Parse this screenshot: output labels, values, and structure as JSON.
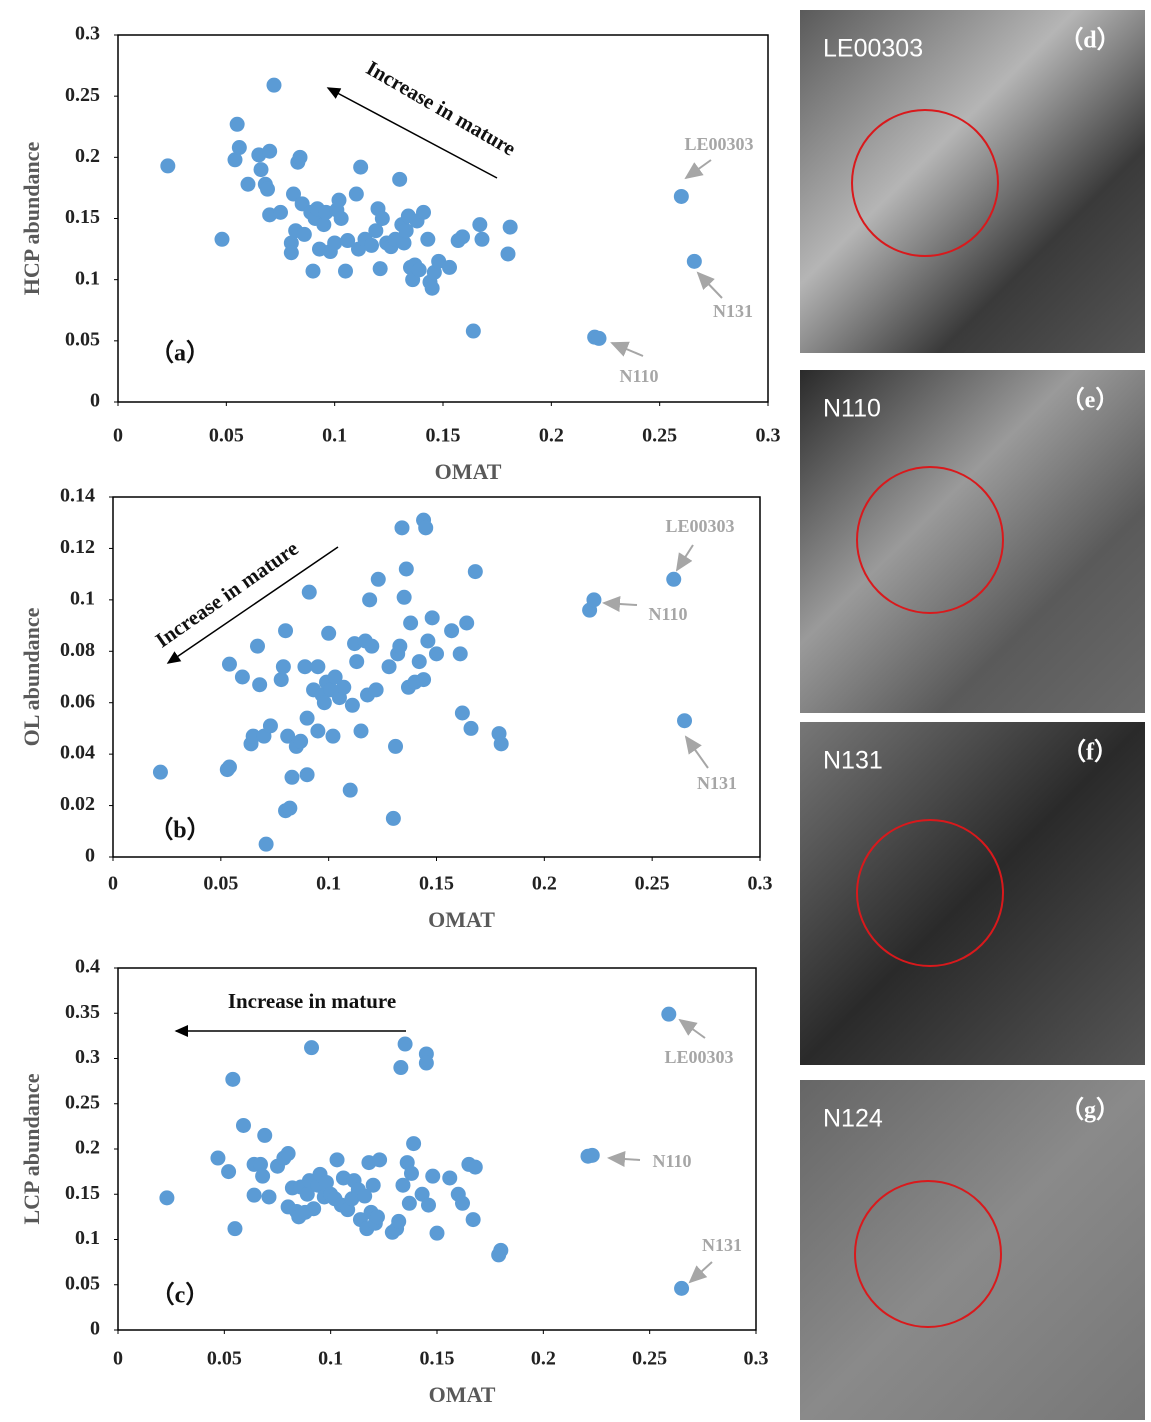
{
  "chart_data": [
    {
      "type": "scatter",
      "panel_label": "（a）",
      "x_label": "OMAT",
      "y_label": "HCP abundance",
      "color": "#5b9bd5",
      "xlim": [
        0,
        0.3
      ],
      "xticks": [
        0,
        0.05,
        0.1,
        0.15,
        0.2,
        0.25,
        0.3
      ],
      "ylim": [
        0,
        0.3
      ],
      "yticks": [
        0,
        0.05,
        0.1,
        0.15,
        0.2,
        0.25,
        0.3
      ],
      "annotations": [
        {
          "text": "Increase in mature"
        },
        {
          "text": "LE00303"
        },
        {
          "text": "N131"
        },
        {
          "text": "N110"
        }
      ],
      "x": [
        0.023,
        0.048,
        0.054,
        0.055,
        0.056,
        0.06,
        0.065,
        0.066,
        0.068,
        0.069,
        0.07,
        0.07,
        0.072,
        0.075,
        0.08,
        0.08,
        0.081,
        0.082,
        0.083,
        0.084,
        0.085,
        0.086,
        0.089,
        0.09,
        0.091,
        0.092,
        0.093,
        0.095,
        0.096,
        0.098,
        0.1,
        0.101,
        0.102,
        0.103,
        0.105,
        0.106,
        0.11,
        0.111,
        0.112,
        0.114,
        0.117,
        0.119,
        0.12,
        0.121,
        0.122,
        0.124,
        0.126,
        0.128,
        0.13,
        0.131,
        0.132,
        0.133,
        0.134,
        0.135,
        0.136,
        0.137,
        0.138,
        0.139,
        0.141,
        0.143,
        0.144,
        0.145,
        0.146,
        0.148,
        0.153,
        0.157,
        0.159,
        0.164,
        0.167,
        0.168,
        0.18,
        0.181,
        0.22,
        0.222,
        0.26,
        0.266
      ],
      "values": [
        0.193,
        0.133,
        0.198,
        0.227,
        0.208,
        0.178,
        0.202,
        0.19,
        0.178,
        0.174,
        0.205,
        0.153,
        0.259,
        0.155,
        0.13,
        0.122,
        0.17,
        0.14,
        0.196,
        0.2,
        0.162,
        0.137,
        0.155,
        0.107,
        0.15,
        0.158,
        0.125,
        0.145,
        0.155,
        0.123,
        0.13,
        0.157,
        0.165,
        0.15,
        0.107,
        0.132,
        0.17,
        0.125,
        0.192,
        0.133,
        0.128,
        0.14,
        0.158,
        0.109,
        0.15,
        0.13,
        0.127,
        0.133,
        0.182,
        0.145,
        0.13,
        0.14,
        0.152,
        0.11,
        0.1,
        0.112,
        0.148,
        0.108,
        0.155,
        0.133,
        0.098,
        0.093,
        0.106,
        0.115,
        0.11,
        0.132,
        0.135,
        0.058,
        0.145,
        0.133,
        0.121,
        0.143,
        0.053,
        0.052,
        0.168,
        0.115
      ]
    },
    {
      "type": "scatter",
      "panel_label": "（b）",
      "x_label": "OMAT",
      "y_label": "OL abundance",
      "color": "#5b9bd5",
      "xlim": [
        0,
        0.3
      ],
      "xticks": [
        0,
        0.05,
        0.1,
        0.15,
        0.2,
        0.25,
        0.3
      ],
      "ylim": [
        0,
        0.14
      ],
      "yticks": [
        0,
        0.02,
        0.04,
        0.06,
        0.08,
        0.1,
        0.12,
        0.14
      ],
      "annotations": [
        {
          "text": "Increase in mature"
        },
        {
          "text": "LE00303"
        },
        {
          "text": "N110"
        },
        {
          "text": "N131"
        }
      ],
      "x": [
        0.022,
        0.053,
        0.054,
        0.054,
        0.06,
        0.064,
        0.065,
        0.067,
        0.068,
        0.07,
        0.071,
        0.073,
        0.078,
        0.079,
        0.08,
        0.08,
        0.081,
        0.082,
        0.083,
        0.085,
        0.087,
        0.089,
        0.09,
        0.09,
        0.091,
        0.093,
        0.095,
        0.095,
        0.097,
        0.098,
        0.099,
        0.1,
        0.101,
        0.102,
        0.103,
        0.105,
        0.107,
        0.11,
        0.111,
        0.112,
        0.113,
        0.115,
        0.117,
        0.118,
        0.119,
        0.12,
        0.122,
        0.123,
        0.128,
        0.13,
        0.131,
        0.132,
        0.133,
        0.134,
        0.135,
        0.136,
        0.137,
        0.138,
        0.14,
        0.142,
        0.144,
        0.144,
        0.145,
        0.146,
        0.148,
        0.15,
        0.157,
        0.161,
        0.162,
        0.164,
        0.166,
        0.168,
        0.179,
        0.18,
        0.221,
        0.223,
        0.26,
        0.265
      ],
      "values": [
        0.033,
        0.034,
        0.035,
        0.075,
        0.07,
        0.044,
        0.047,
        0.082,
        0.067,
        0.047,
        0.005,
        0.051,
        0.069,
        0.074,
        0.018,
        0.088,
        0.047,
        0.019,
        0.031,
        0.043,
        0.045,
        0.074,
        0.054,
        0.032,
        0.103,
        0.065,
        0.074,
        0.049,
        0.063,
        0.06,
        0.068,
        0.087,
        0.065,
        0.047,
        0.07,
        0.062,
        0.066,
        0.026,
        0.059,
        0.083,
        0.076,
        0.049,
        0.084,
        0.063,
        0.1,
        0.082,
        0.065,
        0.108,
        0.074,
        0.015,
        0.043,
        0.079,
        0.082,
        0.128,
        0.101,
        0.112,
        0.066,
        0.091,
        0.068,
        0.076,
        0.069,
        0.131,
        0.128,
        0.084,
        0.093,
        0.079,
        0.088,
        0.079,
        0.056,
        0.091,
        0.05,
        0.111,
        0.048,
        0.044,
        0.096,
        0.1,
        0.108,
        0.053
      ]
    },
    {
      "type": "scatter",
      "panel_label": "（c）",
      "x_label": "OMAT",
      "y_label": "LCP abundance",
      "color": "#5b9bd5",
      "xlim": [
        0,
        0.3
      ],
      "xticks": [
        0,
        0.05,
        0.1,
        0.15,
        0.2,
        0.25,
        0.3
      ],
      "ylim": [
        0,
        0.4
      ],
      "yticks": [
        0,
        0.05,
        0.1,
        0.15,
        0.2,
        0.25,
        0.3,
        0.35,
        0.4
      ],
      "annotations": [
        {
          "text": "Increase in mature"
        },
        {
          "text": "LE00303"
        },
        {
          "text": "N110"
        },
        {
          "text": "N131"
        }
      ],
      "x": [
        0.023,
        0.047,
        0.052,
        0.054,
        0.055,
        0.059,
        0.064,
        0.064,
        0.067,
        0.068,
        0.069,
        0.071,
        0.075,
        0.078,
        0.08,
        0.08,
        0.082,
        0.084,
        0.085,
        0.086,
        0.088,
        0.089,
        0.09,
        0.091,
        0.092,
        0.094,
        0.095,
        0.097,
        0.098,
        0.1,
        0.102,
        0.103,
        0.105,
        0.106,
        0.108,
        0.11,
        0.111,
        0.113,
        0.114,
        0.116,
        0.117,
        0.118,
        0.119,
        0.12,
        0.121,
        0.122,
        0.123,
        0.129,
        0.131,
        0.132,
        0.133,
        0.134,
        0.135,
        0.136,
        0.137,
        0.138,
        0.139,
        0.143,
        0.145,
        0.145,
        0.146,
        0.148,
        0.15,
        0.156,
        0.16,
        0.162,
        0.165,
        0.167,
        0.168,
        0.179,
        0.18,
        0.221,
        0.223,
        0.259,
        0.265
      ],
      "values": [
        0.146,
        0.19,
        0.175,
        0.277,
        0.112,
        0.226,
        0.149,
        0.183,
        0.183,
        0.17,
        0.215,
        0.147,
        0.181,
        0.19,
        0.195,
        0.136,
        0.157,
        0.131,
        0.125,
        0.158,
        0.13,
        0.15,
        0.165,
        0.312,
        0.134,
        0.16,
        0.172,
        0.147,
        0.163,
        0.15,
        0.145,
        0.188,
        0.138,
        0.168,
        0.133,
        0.145,
        0.165,
        0.155,
        0.122,
        0.148,
        0.112,
        0.185,
        0.13,
        0.16,
        0.118,
        0.125,
        0.188,
        0.108,
        0.112,
        0.12,
        0.29,
        0.16,
        0.316,
        0.185,
        0.14,
        0.173,
        0.206,
        0.15,
        0.305,
        0.295,
        0.138,
        0.17,
        0.107,
        0.168,
        0.15,
        0.14,
        0.183,
        0.122,
        0.18,
        0.083,
        0.088,
        0.192,
        0.193,
        0.349,
        0.046
      ]
    }
  ],
  "images": [
    {
      "name": "LE00303",
      "label": "（d）"
    },
    {
      "name": "N110",
      "label": "（e）"
    },
    {
      "name": "N131",
      "label": "（f）"
    },
    {
      "name": "N124",
      "label": "（g）"
    }
  ]
}
